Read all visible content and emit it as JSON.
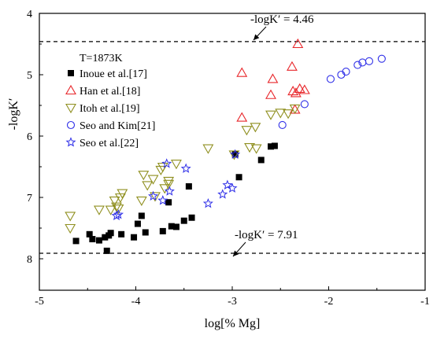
{
  "chart_data": {
    "type": "scatter",
    "xlabel": "log[% Mg]",
    "ylabel": "-logK′",
    "xlim": [
      -5,
      -1
    ],
    "ylim": [
      4,
      8.5
    ],
    "y_inverted": true,
    "grid": false,
    "legend_title": "T=1873K",
    "legend_position": "top-left",
    "x_ticks": [
      -5,
      -4,
      -3,
      -2,
      -1
    ],
    "x_tick_labels": [
      "-5",
      "-4",
      "-3",
      "-2",
      "-1"
    ],
    "y_ticks": [
      4,
      5,
      6,
      7,
      8
    ],
    "y_tick_labels": [
      "4",
      "5",
      "6",
      "7",
      "8"
    ],
    "reference_lines": [
      {
        "y": 4.46,
        "label": "-logK′ = 4.46"
      },
      {
        "y": 7.91,
        "label": "-logK′ = 7.91"
      }
    ],
    "series": [
      {
        "name": "Inoue et al.[17]",
        "marker": "filled-square",
        "color": "#000000",
        "points": [
          [
            -4.62,
            7.71
          ],
          [
            -4.48,
            7.6
          ],
          [
            -4.45,
            7.68
          ],
          [
            -4.38,
            7.7
          ],
          [
            -4.32,
            7.65
          ],
          [
            -4.3,
            7.87
          ],
          [
            -4.28,
            7.62
          ],
          [
            -4.26,
            7.58
          ],
          [
            -4.15,
            7.6
          ],
          [
            -4.02,
            7.65
          ],
          [
            -3.98,
            7.43
          ],
          [
            -3.94,
            7.3
          ],
          [
            -3.9,
            7.57
          ],
          [
            -3.72,
            7.55
          ],
          [
            -3.66,
            7.08
          ],
          [
            -3.63,
            7.47
          ],
          [
            -3.58,
            7.48
          ],
          [
            -3.5,
            7.38
          ],
          [
            -3.45,
            6.82
          ],
          [
            -3.42,
            7.33
          ],
          [
            -2.93,
            6.67
          ],
          [
            -2.7,
            6.39
          ],
          [
            -2.6,
            6.17
          ],
          [
            -2.56,
            6.16
          ],
          [
            -2.97,
            6.3
          ]
        ]
      },
      {
        "name": "Han et al.[18]",
        "marker": "open-triangle-up",
        "color": "#e8262a",
        "points": [
          [
            -2.32,
            4.5
          ],
          [
            -2.9,
            4.97
          ],
          [
            -2.58,
            5.07
          ],
          [
            -2.38,
            4.87
          ],
          [
            -2.37,
            5.27
          ],
          [
            -2.34,
            5.3
          ],
          [
            -2.3,
            5.23
          ],
          [
            -2.25,
            5.25
          ],
          [
            -2.6,
            5.33
          ],
          [
            -2.35,
            5.57
          ],
          [
            -2.9,
            5.7
          ]
        ]
      },
      {
        "name": "Itoh et al.[19]",
        "marker": "open-triangle-down",
        "color": "#8f8f1f",
        "points": [
          [
            -4.68,
            7.3
          ],
          [
            -4.68,
            7.5
          ],
          [
            -4.38,
            7.2
          ],
          [
            -4.26,
            7.2
          ],
          [
            -4.22,
            7.05
          ],
          [
            -4.2,
            7.15
          ],
          [
            -4.18,
            7.18
          ],
          [
            -4.16,
            7.0
          ],
          [
            -4.14,
            6.93
          ],
          [
            -3.94,
            7.05
          ],
          [
            -3.92,
            6.63
          ],
          [
            -3.88,
            6.8
          ],
          [
            -3.82,
            6.7
          ],
          [
            -3.8,
            6.98
          ],
          [
            -3.74,
            6.55
          ],
          [
            -3.72,
            6.5
          ],
          [
            -3.7,
            6.85
          ],
          [
            -3.66,
            6.73
          ],
          [
            -3.66,
            6.78
          ],
          [
            -3.58,
            6.45
          ],
          [
            -3.25,
            6.2
          ],
          [
            -2.98,
            6.3
          ],
          [
            -2.85,
            5.9
          ],
          [
            -2.82,
            6.18
          ],
          [
            -2.76,
            5.85
          ],
          [
            -2.75,
            6.2
          ],
          [
            -2.6,
            5.65
          ],
          [
            -2.5,
            5.62
          ],
          [
            -2.42,
            5.63
          ],
          [
            -2.35,
            5.55
          ]
        ]
      },
      {
        "name": "Seo and Kim[21]",
        "marker": "open-circle",
        "color": "#2f2fe8",
        "points": [
          [
            -1.45,
            4.74
          ],
          [
            -1.58,
            4.78
          ],
          [
            -1.65,
            4.8
          ],
          [
            -1.7,
            4.84
          ],
          [
            -1.82,
            4.95
          ],
          [
            -1.87,
            5.0
          ],
          [
            -1.98,
            5.07
          ],
          [
            -2.25,
            5.48
          ],
          [
            -2.48,
            5.82
          ]
        ]
      },
      {
        "name": "Seo et al.[22]",
        "marker": "open-star",
        "color": "#2f2fe8",
        "points": [
          [
            -4.2,
            7.3
          ],
          [
            -4.18,
            7.28
          ],
          [
            -3.82,
            6.98
          ],
          [
            -3.72,
            7.05
          ],
          [
            -3.68,
            6.45
          ],
          [
            -3.65,
            6.9
          ],
          [
            -3.48,
            6.53
          ],
          [
            -3.25,
            7.1
          ],
          [
            -3.1,
            6.95
          ],
          [
            -3.05,
            6.8
          ],
          [
            -3.0,
            6.85
          ],
          [
            -2.97,
            6.3
          ]
        ]
      }
    ]
  }
}
